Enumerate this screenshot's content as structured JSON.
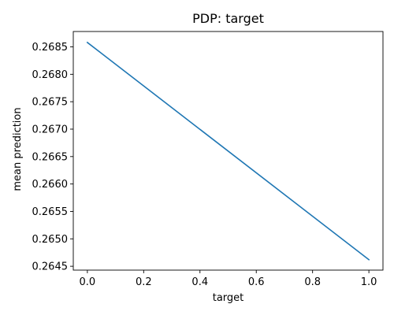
{
  "chart_data": {
    "type": "line",
    "title": "PDP: target",
    "xlabel": "target",
    "ylabel": "mean prediction",
    "xlim": [
      -0.05,
      1.05
    ],
    "ylim": [
      0.26443,
      0.26878
    ],
    "x_ticks": [
      "0.0",
      "0.2",
      "0.4",
      "0.6",
      "0.8",
      "1.0"
    ],
    "x_tick_values": [
      0.0,
      0.2,
      0.4,
      0.6,
      0.8,
      1.0
    ],
    "y_ticks": [
      "0.2645",
      "0.2650",
      "0.2655",
      "0.2660",
      "0.2665",
      "0.2670",
      "0.2675",
      "0.2680",
      "0.2685"
    ],
    "y_tick_values": [
      0.2645,
      0.265,
      0.2655,
      0.266,
      0.2665,
      0.267,
      0.2675,
      0.268,
      0.2685
    ],
    "grid": false,
    "series": [
      {
        "color": "#1f77b4",
        "x": [
          0.0,
          1.0
        ],
        "y": [
          0.26858,
          0.26462
        ]
      }
    ]
  }
}
